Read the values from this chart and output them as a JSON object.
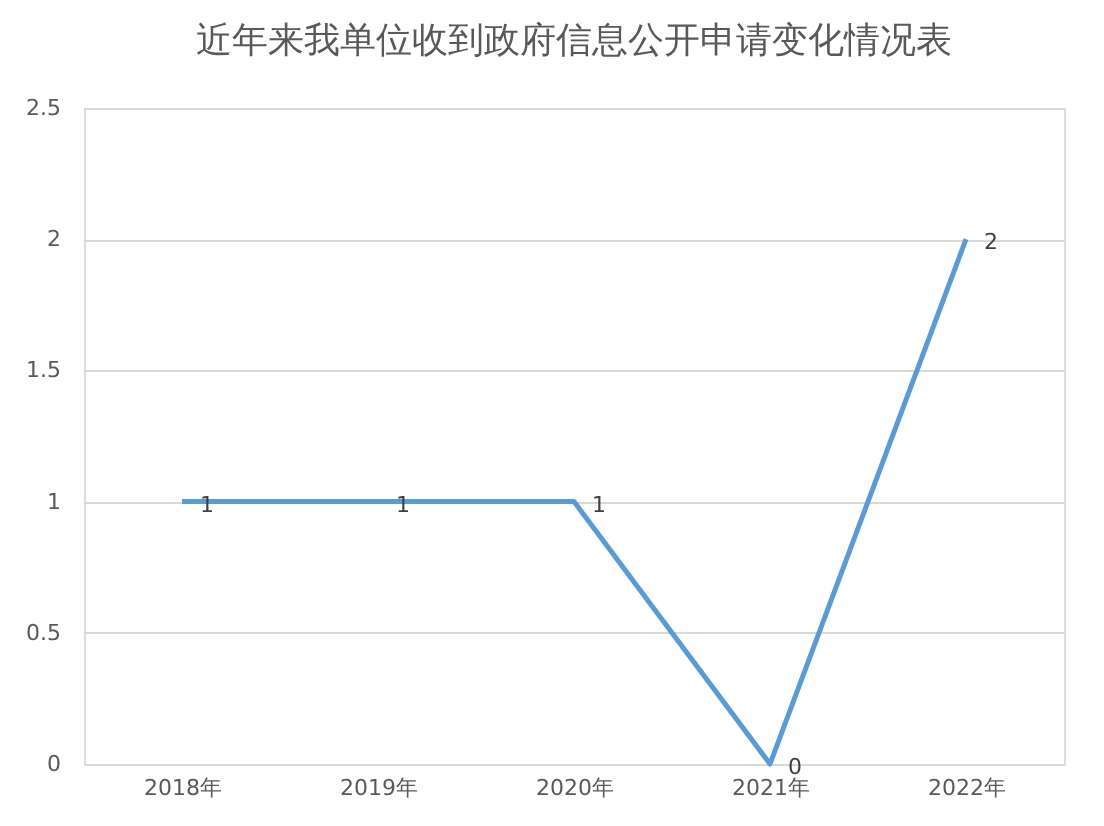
{
  "chart_data": {
    "type": "line",
    "title": "近年来我单位收到政府信息公开申请变化情况表",
    "categories": [
      "2018年",
      "2019年",
      "2020年",
      "2021年",
      "2022年"
    ],
    "series": [
      {
        "color": "#5b9bd5",
        "values": [
          1,
          1,
          1,
          0,
          2
        ]
      }
    ],
    "ylim": [
      0,
      2.5
    ],
    "yticks": [
      0,
      0.5,
      1,
      1.5,
      2,
      2.5
    ],
    "grid": "y",
    "data_labels": true,
    "legend": false,
    "marker": "none",
    "line_style": "solid"
  }
}
